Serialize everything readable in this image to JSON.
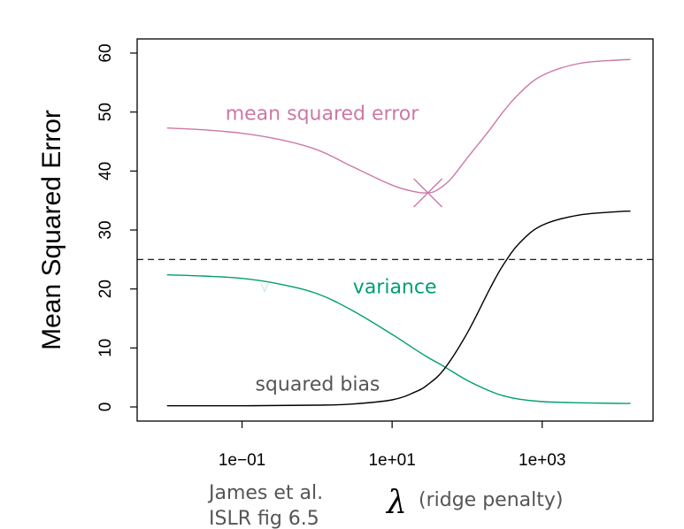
{
  "chart_data": {
    "type": "line",
    "ylabel": "Mean Squared Error",
    "xscale": "log10",
    "xlim": [
      0.004,
      30000
    ],
    "ylim": [
      0,
      62
    ],
    "x_ticks": [
      {
        "value": 0.1,
        "label": "1e−01"
      },
      {
        "value": 10,
        "label": "1e+01"
      },
      {
        "value": 1000,
        "label": "1e+03"
      }
    ],
    "y_ticks": [
      {
        "value": 0,
        "label": "0"
      },
      {
        "value": 10,
        "label": "10"
      },
      {
        "value": 20,
        "label": "20"
      },
      {
        "value": 30,
        "label": "30"
      },
      {
        "value": 40,
        "label": "40"
      },
      {
        "value": 50,
        "label": "50"
      },
      {
        "value": 60,
        "label": "60"
      }
    ],
    "x_label": {
      "symbol": "λ",
      "text": "(ridge penalty)"
    },
    "caption": [
      "James et al.",
      "ISLR fig 6.5"
    ],
    "reference_line": {
      "y": 25,
      "style": "dashed",
      "color": "#000000"
    },
    "series": [
      {
        "name": "mean squared error",
        "color": "#cc79a7",
        "x": [
          0.01,
          0.03,
          0.1,
          0.3,
          1,
          3,
          10,
          20,
          30,
          40,
          60,
          100,
          200,
          300,
          500,
          1000,
          3000,
          10000,
          15000
        ],
        "values": [
          47.3,
          47.0,
          46.4,
          45.4,
          43.6,
          40.7,
          37.6,
          36.5,
          36.3,
          36.8,
          38.6,
          42.2,
          47.0,
          50.0,
          53.2,
          56.2,
          58.2,
          58.8,
          58.9
        ]
      },
      {
        "name": "variance",
        "color": "#009e73",
        "x": [
          0.01,
          0.03,
          0.1,
          0.3,
          1,
          3,
          10,
          20,
          30,
          50,
          100,
          200,
          300,
          500,
          1000,
          3000,
          10000,
          15000
        ],
        "values": [
          22.4,
          22.2,
          21.8,
          20.9,
          19.2,
          16.3,
          12.3,
          9.8,
          8.4,
          6.8,
          4.5,
          2.7,
          1.9,
          1.3,
          0.9,
          0.7,
          0.6,
          0.6
        ]
      },
      {
        "name": "squared bias",
        "color": "#000000",
        "x": [
          0.01,
          0.1,
          1,
          3,
          10,
          20,
          30,
          50,
          100,
          200,
          300,
          500,
          1000,
          3000,
          10000,
          15000
        ],
        "values": [
          0.2,
          0.2,
          0.3,
          0.5,
          1.2,
          2.5,
          3.8,
          6.5,
          12.5,
          20.0,
          24.0,
          27.8,
          30.8,
          32.5,
          33.1,
          33.2
        ]
      }
    ],
    "annotations": [
      {
        "text": "mean squared error",
        "x": 0.06,
        "y": 48.7,
        "color": "#cc79a7"
      },
      {
        "text": "variance",
        "x": 3,
        "y": 19.3,
        "color": "#009e73"
      },
      {
        "text": "squared bias",
        "x": 0.15,
        "y": 2.8,
        "color": "#555555"
      }
    ],
    "minimum_marker": {
      "x": 30,
      "y": 36.3,
      "color": "#cc79a7",
      "shape": "x"
    },
    "minor_marker": {
      "x": 0.2,
      "y": 20.2,
      "color": "#cce9dc",
      "shape": "v"
    }
  }
}
